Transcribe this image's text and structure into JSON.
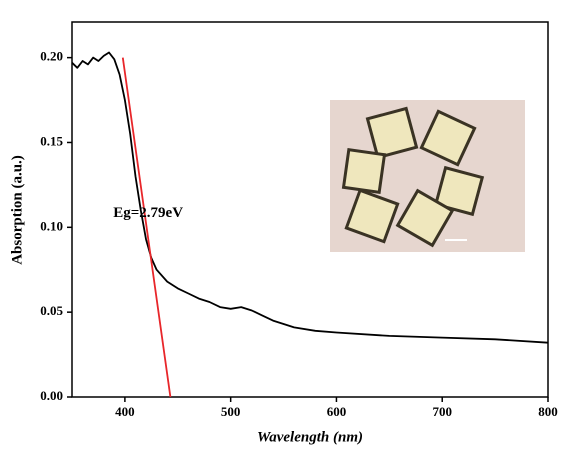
{
  "chart_data": {
    "type": "line",
    "x_label": "Wavelength (nm)",
    "y_label": "Absorption (a.u.)",
    "annotation": {
      "text": "Eg=2.79eV",
      "x": 422,
      "y": 0.108
    },
    "xlim": [
      350,
      800
    ],
    "ylim": [
      0,
      0.221
    ],
    "xticks": [
      400,
      500,
      600,
      700,
      800
    ],
    "yticks": [
      {
        "value": 0,
        "label": "0.00"
      },
      {
        "value": 0.05,
        "label": "0.05"
      },
      {
        "value": 0.1,
        "label": "0.10"
      },
      {
        "value": 0.15,
        "label": "0.15"
      },
      {
        "value": 0.2,
        "label": "0.20"
      }
    ],
    "series": [
      {
        "color": "#000000",
        "x": [
          350,
          355,
          360,
          365,
          370,
          375,
          380,
          385,
          390,
          395,
          400,
          405,
          410,
          415,
          420,
          425,
          430,
          440,
          450,
          460,
          470,
          480,
          490,
          500,
          510,
          520,
          530,
          540,
          550,
          560,
          580,
          600,
          650,
          700,
          750,
          800
        ],
        "values": [
          0.197,
          0.194,
          0.198,
          0.196,
          0.2,
          0.198,
          0.201,
          0.203,
          0.199,
          0.19,
          0.175,
          0.155,
          0.13,
          0.11,
          0.093,
          0.082,
          0.075,
          0.068,
          0.064,
          0.061,
          0.058,
          0.056,
          0.053,
          0.052,
          0.053,
          0.051,
          0.048,
          0.045,
          0.043,
          0.041,
          0.039,
          0.038,
          0.036,
          0.035,
          0.034,
          0.032
        ]
      },
      {
        "color": "#e8262a",
        "x": [
          398,
          443
        ],
        "values": [
          0.2,
          0
        ]
      }
    ]
  }
}
